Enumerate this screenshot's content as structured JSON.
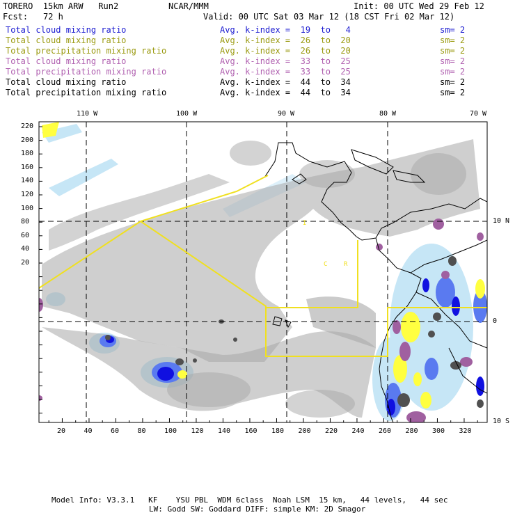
{
  "header": {
    "model": "TORERO  15km ARW   Run2",
    "org": "NCAR/MMM",
    "init": "Init: 00 UTC Wed 29 Feb 12",
    "fcst_label": "Fcst:",
    "fcst_value": "72 h",
    "valid": "Valid: 00 UTC Sat 03 Mar 12 (18 CST Fri 02 Mar 12)"
  },
  "legend": [
    {
      "field": "Total cloud mixing ratio",
      "kindex": "Avg. k-index =  19  to   4",
      "sm": "sm= 2",
      "color": "#1a1ad0"
    },
    {
      "field": "Total cloud mixing ratio",
      "kindex": "Avg. k-index =  26  to  20",
      "sm": "sm= 2",
      "color": "#9a9a10"
    },
    {
      "field": "Total precipitation mixing ratio",
      "kindex": "Avg. k-index =  26  to  20",
      "sm": "sm= 2",
      "color": "#9a9a10"
    },
    {
      "field": "Total cloud mixing ratio",
      "kindex": "Avg. k-index =  33  to  25",
      "sm": "sm= 2",
      "color": "#b060b0"
    },
    {
      "field": "Total precipitation mixing ratio",
      "kindex": "Avg. k-index =  33  to  25",
      "sm": "sm= 2",
      "color": "#b060b0"
    },
    {
      "field": "Total cloud mixing ratio",
      "kindex": "Avg. k-index =  44  to  34",
      "sm": "sm= 2",
      "color": "#000000"
    },
    {
      "field": "Total precipitation mixing ratio",
      "kindex": "Avg. k-index =  44  to  34",
      "sm": "sm= 2",
      "color": "#000000"
    }
  ],
  "axes": {
    "top_lon": [
      "110 W",
      "100 W",
      "90 W",
      "80 W",
      "70 W"
    ],
    "right_lat": [
      "10 N",
      "0",
      "10 S"
    ],
    "left_ticks": [
      "220",
      "200",
      "180",
      "160",
      "140",
      "120",
      "100",
      "80",
      "60",
      "40",
      "20"
    ],
    "bottom_ticks": [
      "20",
      "40",
      "60",
      "80",
      "100",
      "120",
      "140",
      "160",
      "180",
      "200",
      "220",
      "240",
      "260",
      "280",
      "300",
      "320"
    ]
  },
  "colors": {
    "light_blue": "#c6e6f6",
    "medium_blue": "#5a7af0",
    "dark_blue": "#1010e0",
    "yellow": "#ffff40",
    "purple": "#a060a0",
    "gray": "#a8a8a8",
    "dark_gray": "#505050",
    "box": "#f0e020"
  },
  "footer": {
    "line1": "Model Info: V3.3.1   KF    YSU PBL  WDM 6class  Noah LSM  15 km,   44 levels,   44 sec",
    "line2": "LW: Godd SW: Goddard DIFF: simple KM: 2D Smagor"
  }
}
